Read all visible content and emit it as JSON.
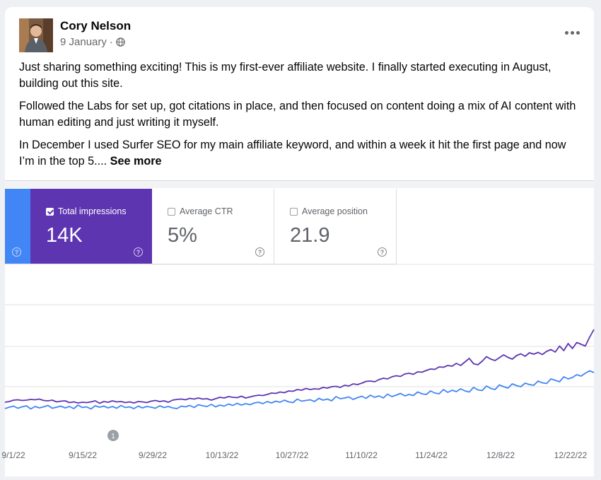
{
  "post": {
    "author": "Cory Nelson",
    "date": "9 January",
    "date_separator": "·",
    "privacy_icon": "globe-icon",
    "paragraphs": [
      "Just sharing something exciting! This is my first-ever affiliate website. I finally started executing in August, building out this site.",
      "Followed the Labs for set up, got citations in place, and then focused on content doing a mix of AI content with human editing and just writing it myself.",
      "In December I used Surfer SEO for my main affiliate keyword, and within a week it hit the first page and now I’m in the top 5...."
    ],
    "see_more": "See more"
  },
  "metrics": {
    "impressions": {
      "label": "Total impressions",
      "value": "14K",
      "checked": true
    },
    "ctr": {
      "label": "Average CTR",
      "value": "5%",
      "checked": false
    },
    "position": {
      "label": "Average position",
      "value": "21.9",
      "checked": false
    },
    "help_glyph": "?"
  },
  "colors": {
    "clicks": "#4285f4",
    "impressions": "#5e35b1",
    "grid": "#e0e0e0",
    "axis_text": "#5f6368",
    "annotation": "#9aa0a6"
  },
  "chart_data": {
    "type": "line",
    "x_tick_labels": [
      "9/1/22",
      "9/15/22",
      "9/29/22",
      "10/13/22",
      "10/27/22",
      "11/10/22",
      "11/24/22",
      "12/8/22",
      "12/22/22"
    ],
    "annotation_label": "1",
    "series": [
      {
        "color_key": "impressions",
        "values": [
          46,
          48,
          52,
          53,
          51,
          52,
          54,
          53,
          55,
          51,
          50,
          52,
          47,
          49,
          50,
          45,
          47,
          44,
          46,
          45,
          47,
          50,
          43,
          48,
          46,
          50,
          47,
          48,
          45,
          47,
          44,
          48,
          47,
          45,
          49,
          51,
          48,
          50,
          46,
          52,
          54,
          55,
          53,
          57,
          55,
          58,
          55,
          56,
          52,
          56,
          60,
          58,
          62,
          60,
          59,
          63,
          58,
          61,
          64,
          66,
          65,
          68,
          72,
          71,
          75,
          73,
          78,
          77,
          82,
          80,
          85,
          82,
          84,
          83,
          88,
          86,
          90,
          91,
          88,
          94,
          92,
          98,
          96,
          100,
          105,
          106,
          104,
          110,
          114,
          112,
          118,
          121,
          119,
          126,
          128,
          125,
          132,
          131,
          136,
          140,
          139,
          146,
          145,
          150,
          148,
          156,
          150,
          160,
          170,
          155,
          152,
          162,
          175,
          168,
          164,
          172,
          180,
          173,
          168,
          178,
          183,
          176,
          186,
          182,
          187,
          181,
          190,
          195,
          188,
          205,
          192,
          212,
          198,
          215,
          210,
          205,
          230,
          252
        ]
      },
      {
        "color_key": "clicks",
        "values": [
          28,
          32,
          35,
          29,
          33,
          36,
          27,
          34,
          30,
          33,
          37,
          29,
          32,
          35,
          30,
          34,
          28,
          38,
          31,
          33,
          27,
          36,
          32,
          35,
          30,
          34,
          29,
          37,
          31,
          33,
          28,
          35,
          30,
          34,
          32,
          29,
          36,
          31,
          34,
          30,
          28,
          35,
          33,
          37,
          31,
          39,
          36,
          34,
          40,
          33,
          38,
          35,
          41,
          37,
          43,
          38,
          42,
          39,
          44,
          46,
          42,
          48,
          44,
          49,
          46,
          52,
          47,
          45,
          55,
          49,
          51,
          53,
          48,
          57,
          52,
          55,
          50,
          62,
          56,
          58,
          61,
          54,
          59,
          63,
          57,
          66,
          60,
          64,
          58,
          69,
          62,
          66,
          71,
          64,
          68,
          65,
          75,
          70,
          68,
          78,
          72,
          70,
          82,
          74,
          80,
          76,
          84,
          78,
          75,
          88,
          81,
          79,
          92,
          85,
          82,
          95,
          90,
          86,
          98,
          93,
          90,
          100,
          96,
          94,
          106,
          101,
          99,
          112,
          108,
          104,
          118,
          112,
          116,
          124,
          120,
          128,
          135,
          130
        ]
      }
    ]
  }
}
